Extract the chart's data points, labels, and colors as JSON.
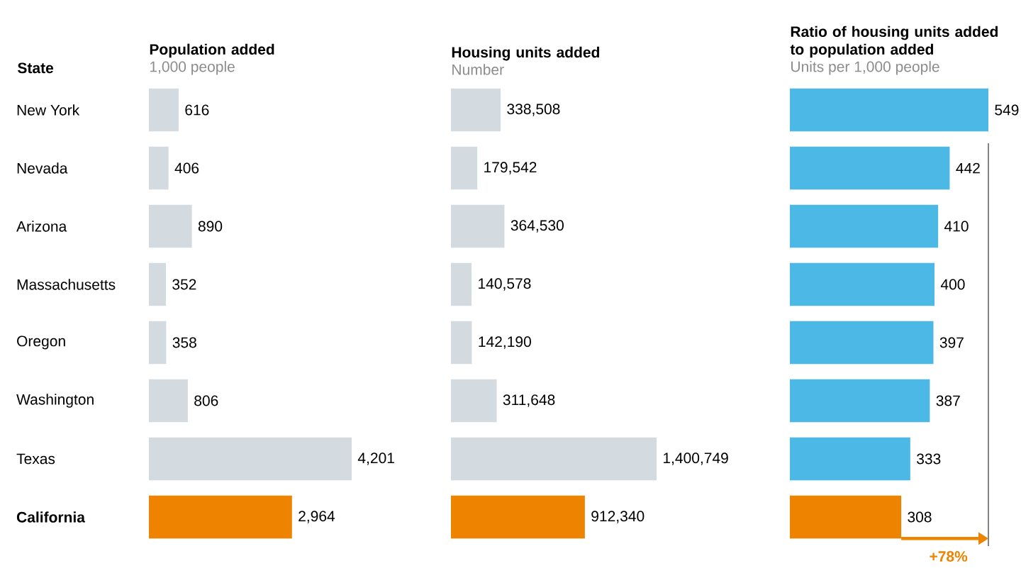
{
  "chart_data": [
    {
      "type": "bar",
      "orientation": "horizontal",
      "title": "Population added",
      "subtitle": "1,000 people",
      "ylabel": "State",
      "tick_labels": "y",
      "categories": [
        "New York",
        "Nevada",
        "Arizona",
        "Massachusetts",
        "Oregon",
        "Washington",
        "Texas",
        "California"
      ],
      "values": [
        616,
        406,
        890,
        352,
        358,
        806,
        4201,
        2964
      ],
      "value_labels": [
        "616",
        "406",
        "890",
        "352",
        "358",
        "806",
        "4,201",
        "2,964"
      ],
      "colors": [
        "#d3dbe0",
        "#d3dbe0",
        "#d3dbe0",
        "#d3dbe0",
        "#d3dbe0",
        "#d3dbe0",
        "#d3dbe0",
        "#ee8300"
      ]
    },
    {
      "type": "bar",
      "orientation": "horizontal",
      "title": "Housing units added",
      "subtitle": "Number",
      "tick_labels": false,
      "values": [
        338508,
        179542,
        364530,
        140578,
        142190,
        311648,
        1400749,
        912340
      ],
      "value_labels": [
        "338,508",
        "179,542",
        "364,530",
        "140,578",
        "142,190",
        "311,648",
        "1,400,749",
        "912,340"
      ],
      "colors": [
        "#d3dbe0",
        "#d3dbe0",
        "#d3dbe0",
        "#d3dbe0",
        "#d3dbe0",
        "#d3dbe0",
        "#d3dbe0",
        "#ee8300"
      ]
    },
    {
      "type": "bar",
      "orientation": "horizontal",
      "title": "Ratio of housing units added to population added",
      "subtitle": "Units per 1,000 people",
      "tick_labels": false,
      "values": [
        549,
        442,
        410,
        400,
        397,
        387,
        333,
        308
      ],
      "value_labels": [
        "549",
        "442",
        "410",
        "400",
        "397",
        "387",
        "333",
        "308"
      ],
      "colors": [
        "#4cb8e6",
        "#4cb8e6",
        "#4cb8e6",
        "#4cb8e6",
        "#4cb8e6",
        "#4cb8e6",
        "#4cb8e6",
        "#ee8300"
      ],
      "ref_lines": [
        {
          "axis": "x",
          "value": 549,
          "color": "#666666"
        }
      ],
      "annotations": [
        "+78%"
      ]
    }
  ]
}
